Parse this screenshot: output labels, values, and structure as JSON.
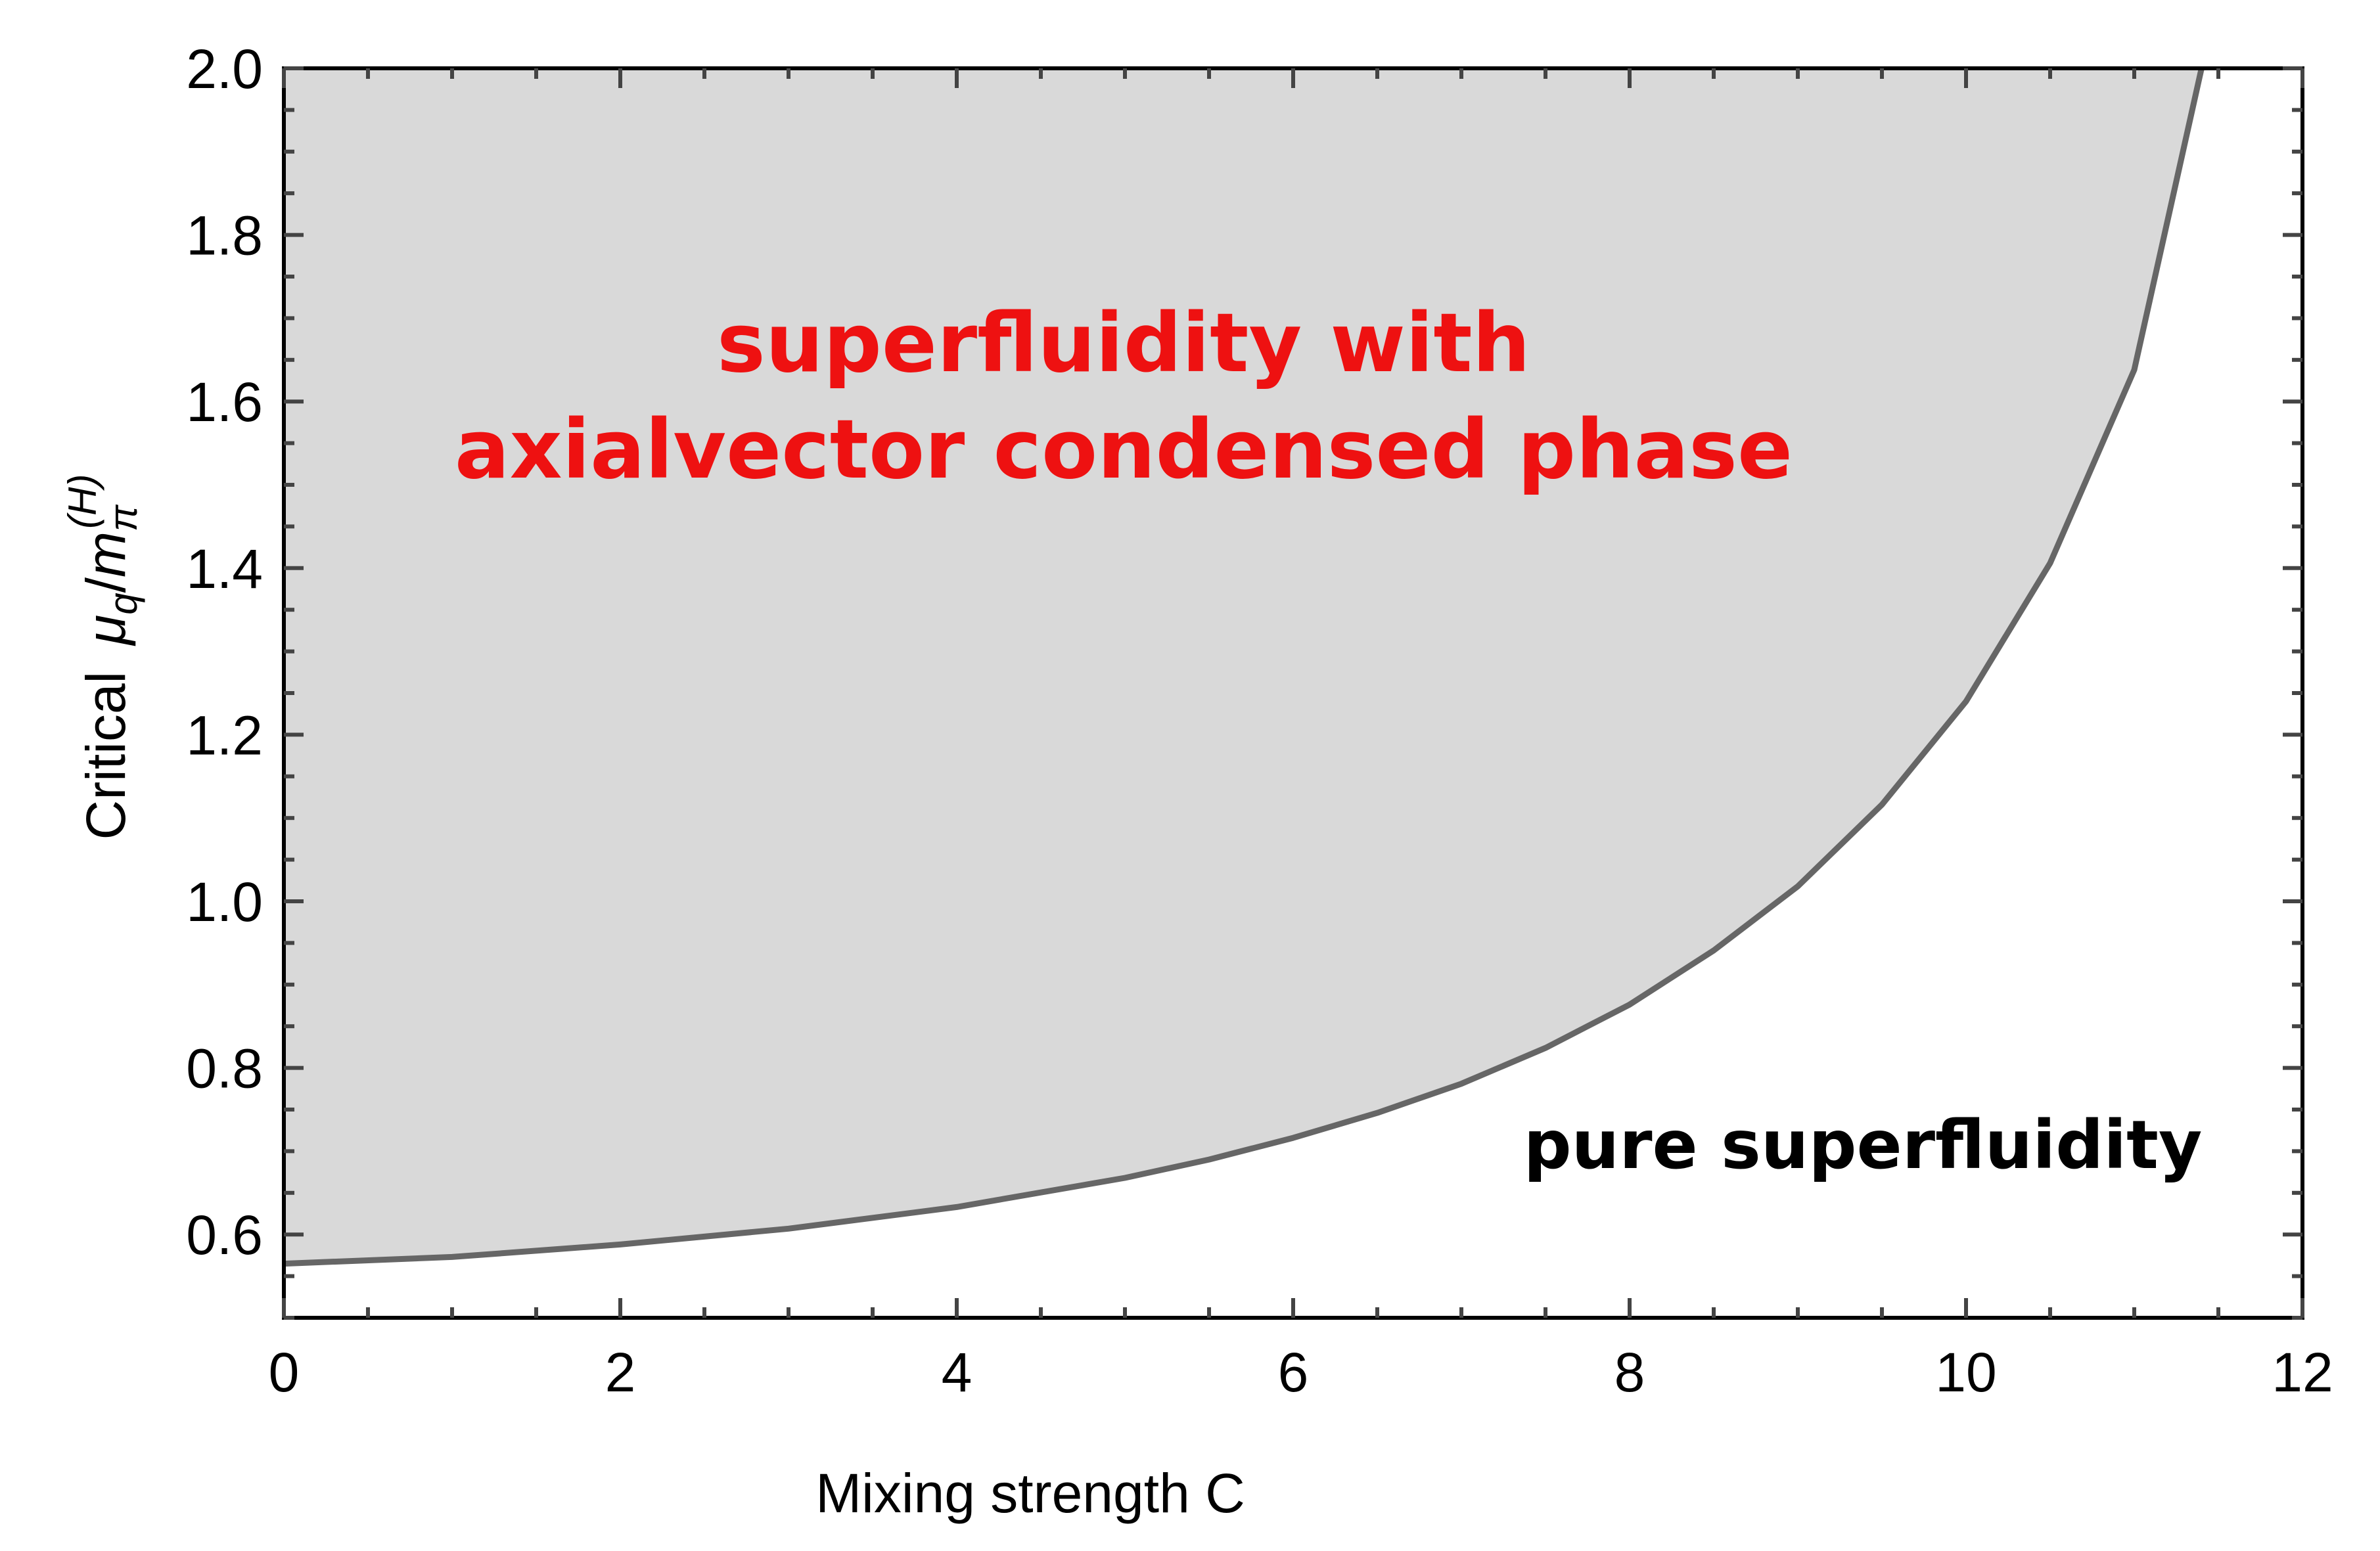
{
  "chart_data": {
    "type": "area",
    "xlabel": "Mixing strength C",
    "ylabel": {
      "prefix": "Critical",
      "mu": "μ",
      "mu_sub": "q",
      "slash": "/",
      "m": "m",
      "m_sub": "π",
      "m_sup": "(H)"
    },
    "xlim": [
      0,
      12
    ],
    "ylim": [
      0.5,
      2.0
    ],
    "xticks": [
      "0",
      "2",
      "4",
      "6",
      "8",
      "10",
      "12"
    ],
    "yticks": [
      "0.6",
      "0.8",
      "1.0",
      "1.2",
      "1.4",
      "1.6",
      "1.8",
      "2.0"
    ],
    "grid": false,
    "series": [
      {
        "x": [
          0,
          1,
          2,
          3,
          4,
          5,
          5.5,
          6,
          6.5,
          7,
          7.5,
          8,
          8.5,
          9,
          9.5,
          10,
          10.5,
          11,
          11.4
        ],
        "y": [
          0.565,
          0.573,
          0.588,
          0.607,
          0.633,
          0.668,
          0.69,
          0.716,
          0.746,
          0.781,
          0.824,
          0.876,
          0.941,
          1.018,
          1.116,
          1.24,
          1.406,
          1.638,
          2.0
        ]
      }
    ],
    "annotations": [
      {
        "lines": [
          "superfluidity with",
          "axialvector condensed phase"
        ],
        "color": "#ee1111",
        "region": "upper-left"
      },
      {
        "lines": [
          "pure superfluidity"
        ],
        "color": "#000000",
        "region": "lower-right"
      }
    ],
    "colors": {
      "fill": "#d9d9d9",
      "curve": "#666666",
      "frame": "#000000"
    }
  }
}
